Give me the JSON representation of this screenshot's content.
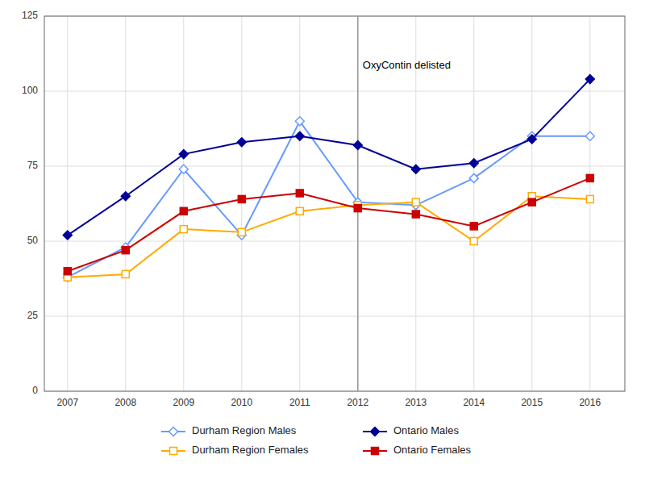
{
  "chart_data": {
    "type": "line",
    "x": [
      2007,
      2008,
      2009,
      2010,
      2011,
      2012,
      2013,
      2014,
      2015,
      2016
    ],
    "series": [
      {
        "name": "Durham Region Males",
        "color": "#6699FF",
        "marker": "diamond-open",
        "values": [
          38,
          48,
          74,
          52,
          90,
          63,
          62,
          71,
          85,
          85
        ]
      },
      {
        "name": "Ontario Males",
        "color": "#000099",
        "marker": "diamond",
        "values": [
          52,
          65,
          79,
          83,
          85,
          82,
          74,
          76,
          84,
          104
        ]
      },
      {
        "name": "Durham Region Females",
        "color": "#FFAA00",
        "marker": "square-open",
        "values": [
          38,
          39,
          54,
          53,
          60,
          62,
          63,
          50,
          65,
          64
        ]
      },
      {
        "name": "Ontario Females",
        "color": "#CC0000",
        "marker": "square",
        "values": [
          40,
          47,
          60,
          64,
          66,
          61,
          59,
          55,
          63,
          71
        ]
      }
    ],
    "annotations": [
      {
        "text": "OxyContin delisted",
        "x": 2012,
        "y": 110
      }
    ],
    "xlim": [
      2006.6,
      2016.6
    ],
    "xticks": [
      2007,
      2008,
      2009,
      2010,
      2011,
      2012,
      2013,
      2014,
      2015,
      2016
    ],
    "ylim": [
      0,
      125
    ],
    "yticks": [
      0,
      25,
      50,
      75,
      100,
      125
    ],
    "grid": true,
    "legend": "bottom"
  }
}
